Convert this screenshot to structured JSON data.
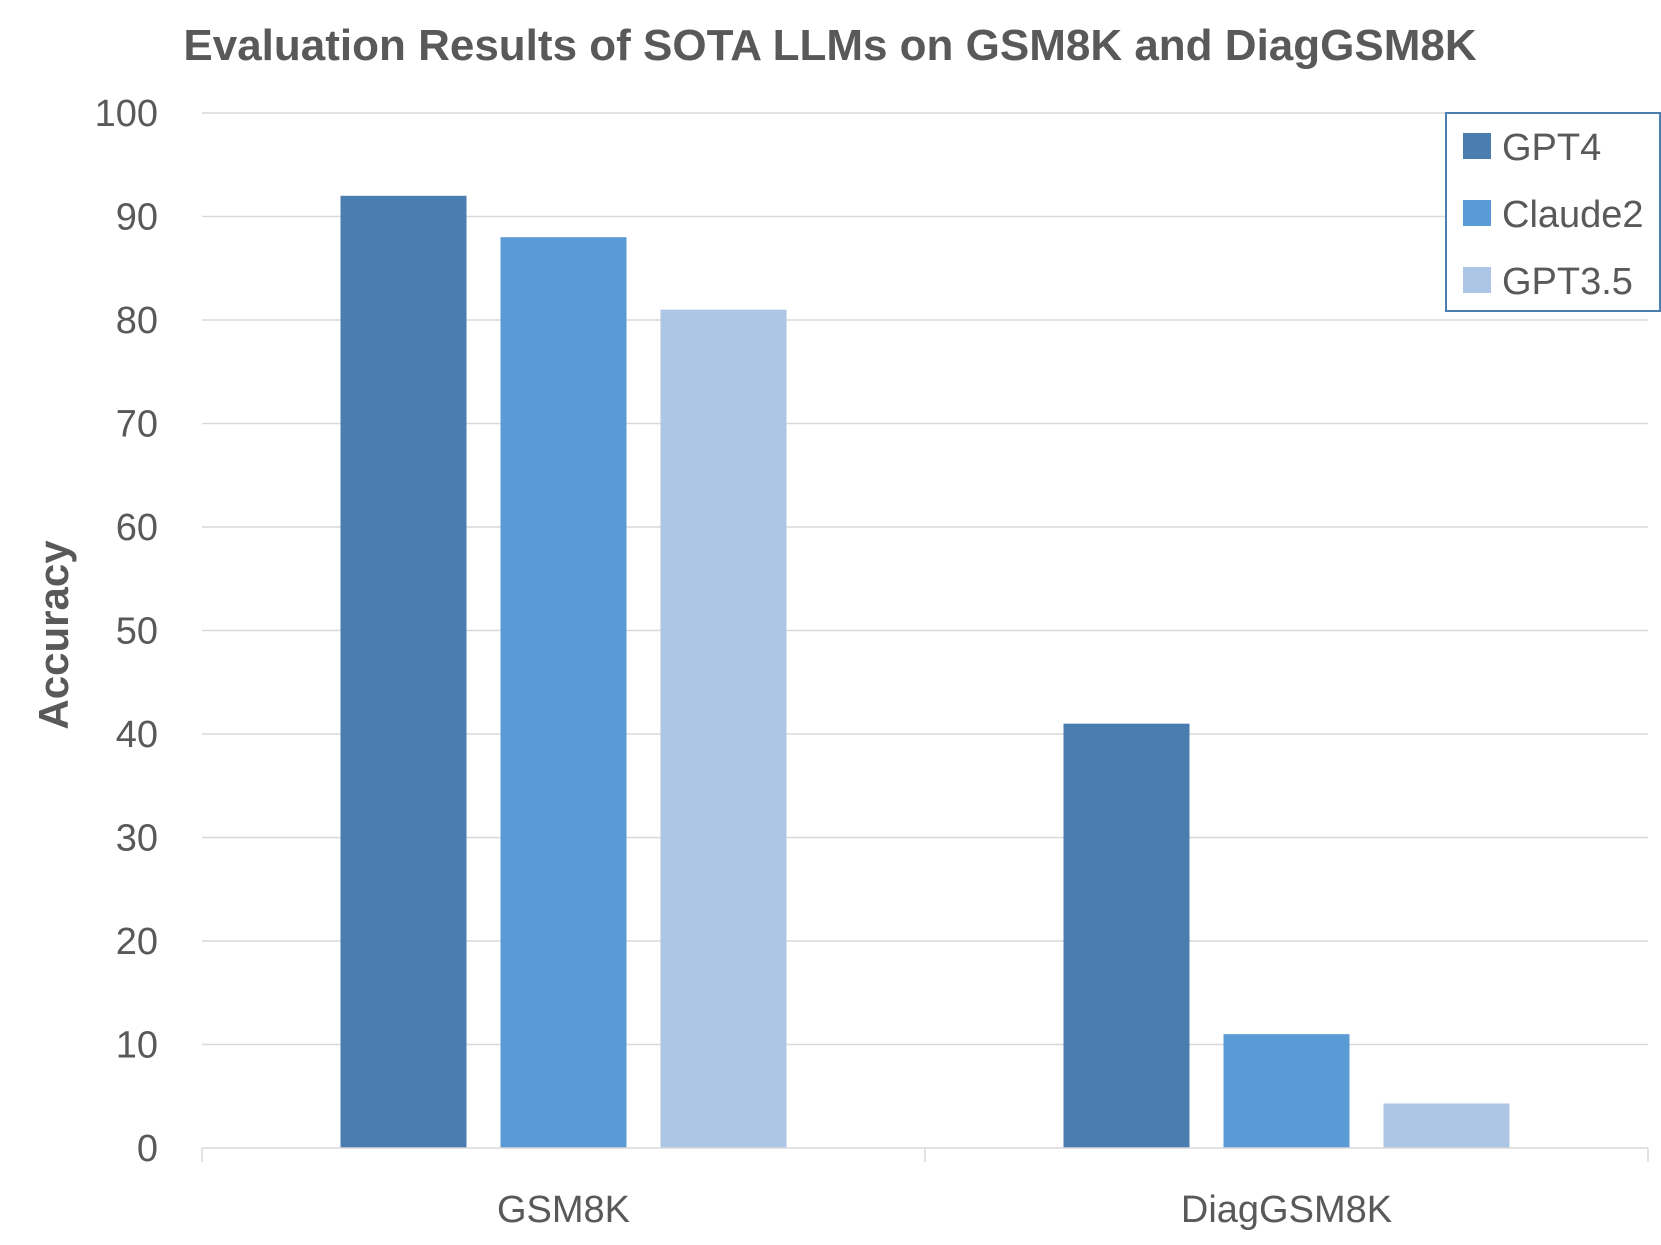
{
  "chart_data": {
    "type": "bar",
    "title": "Evaluation Results of SOTA LLMs on GSM8K and DiagGSM8K",
    "xlabel": "",
    "ylabel": "Accuracy",
    "categories": [
      "GSM8K",
      "DiagGSM8K"
    ],
    "series": [
      {
        "name": "GPT4",
        "values": [
          92,
          41
        ],
        "color": "#4a7eb0"
      },
      {
        "name": "Claude2",
        "values": [
          88,
          11
        ],
        "color": "#5b9bd5"
      },
      {
        "name": "GPT3.5",
        "values": [
          81,
          4.3
        ],
        "color": "#adc6e5"
      }
    ],
    "ylim": [
      0,
      100
    ],
    "yticks": [
      0,
      10,
      20,
      30,
      40,
      50,
      60,
      70,
      80,
      90,
      100
    ],
    "grid": true,
    "legend_position": "top-right",
    "legend_border_color": "#4a7eb0"
  }
}
